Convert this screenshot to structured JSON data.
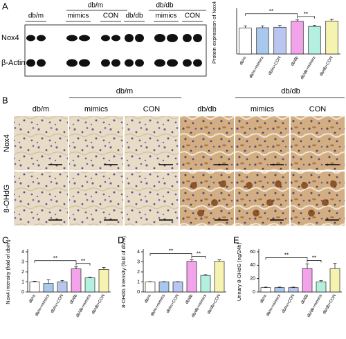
{
  "blot": {
    "panel": "A",
    "groups": [
      "db/m",
      "db/db"
    ],
    "lanes": [
      "db/m",
      "mimics",
      "CON",
      "db/db",
      "mimics",
      "CON"
    ],
    "rows": [
      "Nox4",
      "β-Actin"
    ]
  },
  "histology": {
    "panel": "B",
    "groups": [
      "db/m",
      "db/db"
    ],
    "columns": [
      "db/m",
      "mimics",
      "CON",
      "db/db",
      "mimics",
      "CON"
    ],
    "rows": [
      "Nox4",
      "8-OHdG"
    ]
  },
  "chart_data": [
    {
      "type": "bar",
      "ylabel": "Protein expression of Nox4",
      "categories": [
        "db/m",
        "db/m+mimics",
        "db/m+CON",
        "db/db",
        "db/db+mimics",
        "db/db+CON"
      ],
      "values": [
        0.97,
        0.98,
        1.0,
        1.22,
        1.03,
        1.23
      ],
      "errors": [
        0.08,
        0.07,
        0.07,
        0.05,
        0.04,
        0.06
      ],
      "colors": [
        "#ffffff",
        "#a9c8ee",
        "#b9c6f0",
        "#f3a3ea",
        "#b3f0df",
        "#f6f2b0"
      ],
      "ylim": [
        0,
        1.6
      ],
      "brackets": [
        {
          "between": [
            0,
            3
          ],
          "text": "**"
        },
        {
          "between": [
            3,
            4
          ],
          "text": "**"
        }
      ]
    },
    {
      "type": "bar",
      "panel": "C",
      "ylabel": "Nox4 intensity (fold of db/m)",
      "categories": [
        "db/m",
        "db/m+mimics",
        "db/m+CON",
        "db/db",
        "db/db+mimics",
        "db/db+CON"
      ],
      "values": [
        1.0,
        0.85,
        1.0,
        2.3,
        1.4,
        2.25
      ],
      "errors": [
        0.08,
        0.35,
        0.15,
        0.2,
        0.08,
        0.2
      ],
      "colors": [
        "#ffffff",
        "#a9c8ee",
        "#b9c6f0",
        "#f3a3ea",
        "#b3f0df",
        "#f6f2b0"
      ],
      "ylim": [
        0,
        4
      ],
      "yticks": [
        0,
        1,
        2,
        3,
        4
      ],
      "brackets": [
        {
          "between": [
            0,
            3
          ],
          "text": "**"
        },
        {
          "between": [
            3,
            4
          ],
          "text": "**"
        }
      ]
    },
    {
      "type": "bar",
      "panel": "D",
      "ylabel": "8-OHdG intensity (fold of db/m)",
      "categories": [
        "db/m",
        "db/m+mimics",
        "db/m+CON",
        "db/db",
        "db/db+mimics",
        "db/db+CON"
      ],
      "values": [
        1.0,
        1.0,
        1.0,
        3.05,
        1.65,
        3.05
      ],
      "errors": [
        0.03,
        0.03,
        0.03,
        0.15,
        0.08,
        0.15
      ],
      "colors": [
        "#ffffff",
        "#a9c8ee",
        "#b9c6f0",
        "#f3a3ea",
        "#b3f0df",
        "#f6f2b0"
      ],
      "ylim": [
        0,
        4
      ],
      "yticks": [
        0,
        1,
        2,
        3,
        4
      ],
      "brackets": [
        {
          "between": [
            0,
            3
          ],
          "text": "**"
        },
        {
          "between": [
            3,
            4
          ],
          "text": "**"
        }
      ]
    },
    {
      "type": "bar",
      "panel": "E",
      "ylabel": "Urinary 8-OHdG (ng/24h)",
      "categories": [
        "db/m",
        "db/m+mimics",
        "db/m+CON",
        "db/db",
        "db/db+mimics",
        "db/db+CON"
      ],
      "values": [
        6.5,
        6.5,
        6.5,
        35,
        15,
        35
      ],
      "errors": [
        0.8,
        0.8,
        0.8,
        7,
        2,
        8
      ],
      "colors": [
        "#ffffff",
        "#a9c8ee",
        "#b9c6f0",
        "#f3a3ea",
        "#b3f0df",
        "#f6f2b0"
      ],
      "ylim": [
        0,
        60
      ],
      "yticks": [
        0,
        20,
        40,
        60
      ],
      "brackets": [
        {
          "between": [
            0,
            3
          ],
          "text": "**"
        },
        {
          "between": [
            3,
            4
          ],
          "text": "**"
        }
      ]
    }
  ]
}
